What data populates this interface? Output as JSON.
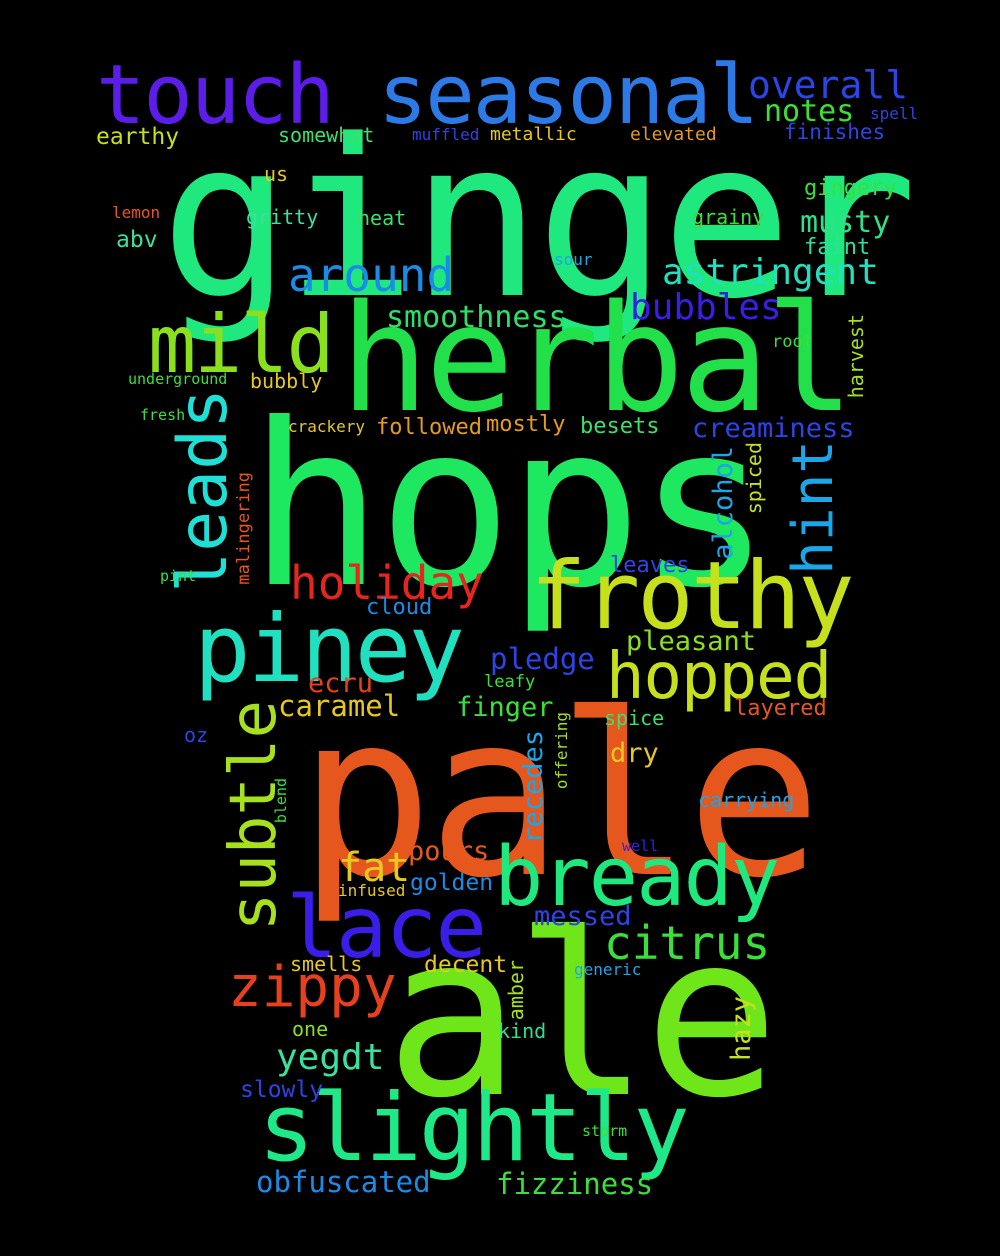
{
  "colors": {
    "background": "#000000",
    "green": "#1ee87e",
    "bright_green": "#22e060",
    "lime": "#6ee61a",
    "yellow_green": "#c6e01e",
    "teal": "#20e0c0",
    "sky": "#1aa6e8",
    "blue": "#2d7ae6",
    "indigo": "#3b1de8",
    "violet": "#5c1de8",
    "orange": "#e6571e",
    "red": "#e6261e",
    "gold": "#e6c81e",
    "amber": "#e69b1e"
  },
  "words": [
    {
      "text": "ginger",
      "color": "#1ee87e"
    },
    {
      "text": "hops",
      "color": "#1ee860"
    },
    {
      "text": "pale",
      "color": "#e6571e"
    },
    {
      "text": "ale",
      "color": "#6ee61a"
    },
    {
      "text": "herbal",
      "color": "#22e04a"
    },
    {
      "text": "touch",
      "color": "#5c1de8"
    },
    {
      "text": "seasonal",
      "color": "#2d7ae6"
    },
    {
      "text": "frothy",
      "color": "#c6e01e"
    },
    {
      "text": "piney",
      "color": "#20e0c0"
    },
    {
      "text": "bready",
      "color": "#1ee87e"
    },
    {
      "text": "slightly",
      "color": "#1ee888"
    },
    {
      "text": "lace",
      "color": "#3b1de8"
    },
    {
      "text": "mild",
      "color": "#8ae01e"
    },
    {
      "text": "hopped",
      "color": "#c6e01e"
    },
    {
      "text": "subtle",
      "color": "#a6e01e"
    },
    {
      "text": "leads",
      "color": "#20e0d6"
    },
    {
      "text": "holiday",
      "color": "#e6261e"
    },
    {
      "text": "zippy",
      "color": "#e6401e"
    },
    {
      "text": "citrus",
      "color": "#3ae03a"
    },
    {
      "text": "around",
      "color": "#1a8ce8"
    },
    {
      "text": "hint",
      "color": "#1aa6e8"
    },
    {
      "text": "overall",
      "color": "#2d44e6"
    },
    {
      "text": "astringent",
      "color": "#20e0c0"
    },
    {
      "text": "bubbles",
      "color": "#3b1de8"
    },
    {
      "text": "notes",
      "color": "#3ae03a"
    },
    {
      "text": "musty",
      "color": "#2ee08c"
    },
    {
      "text": "smoothness",
      "color": "#2ee06a"
    },
    {
      "text": "creaminess",
      "color": "#2d44e6"
    },
    {
      "text": "yegdt",
      "color": "#3ae0a0"
    },
    {
      "text": "fizziness",
      "color": "#3ae03a"
    },
    {
      "text": "obfuscated",
      "color": "#1a8ce8"
    },
    {
      "text": "fat",
      "color": "#e6c81e"
    },
    {
      "text": "caramel",
      "color": "#e6c81e"
    },
    {
      "text": "ecru",
      "color": "#e6401e"
    },
    {
      "text": "pledge",
      "color": "#2d44e6"
    },
    {
      "text": "pleasant",
      "color": "#8ae01e"
    },
    {
      "text": "alcohol",
      "color": "#1aa6e8"
    },
    {
      "text": "pours",
      "color": "#e6571e"
    },
    {
      "text": "finger",
      "color": "#3ae03a"
    },
    {
      "text": "golden",
      "color": "#1a8ce8"
    },
    {
      "text": "messed",
      "color": "#2d44e6"
    },
    {
      "text": "recedes",
      "color": "#1aa6e8"
    },
    {
      "text": "dry",
      "color": "#e6c81e"
    },
    {
      "text": "decent",
      "color": "#e6c81e"
    },
    {
      "text": "hazy",
      "color": "#c6e01e"
    },
    {
      "text": "smells",
      "color": "#e6c81e"
    },
    {
      "text": "one",
      "color": "#8ae01e"
    },
    {
      "text": "slowly",
      "color": "#2d44e6"
    },
    {
      "text": "kind",
      "color": "#2ee08c"
    },
    {
      "text": "amber",
      "color": "#a6e01e"
    },
    {
      "text": "abv",
      "color": "#3ae0a0"
    },
    {
      "text": "earthy",
      "color": "#c6e01e"
    },
    {
      "text": "somewhat",
      "color": "#3ae06a"
    },
    {
      "text": "muffled",
      "color": "#2d44e6"
    },
    {
      "text": "metallic",
      "color": "#e6c81e"
    },
    {
      "text": "elevated",
      "color": "#e69b1e"
    },
    {
      "text": "finishes",
      "color": "#2d44e6"
    },
    {
      "text": "spell",
      "color": "#2d44e6"
    },
    {
      "text": "us",
      "color": "#e6c81e"
    },
    {
      "text": "gingery",
      "color": "#3ae03a"
    },
    {
      "text": "gritty",
      "color": "#3ae0a0"
    },
    {
      "text": "heat",
      "color": "#3ae06a"
    },
    {
      "text": "grainy",
      "color": "#3ae03a"
    },
    {
      "text": "faint",
      "color": "#2ee0a0"
    },
    {
      "text": "lemon",
      "color": "#e6571e"
    },
    {
      "text": "sour",
      "color": "#1aa6e8"
    },
    {
      "text": "root",
      "color": "#3ae03a"
    },
    {
      "text": "harvest",
      "color": "#a6e01e"
    },
    {
      "text": "underground",
      "color": "#3ae03a"
    },
    {
      "text": "bubbly",
      "color": "#e6c81e"
    },
    {
      "text": "fresh",
      "color": "#3ae03a"
    },
    {
      "text": "crackery",
      "color": "#e6c81e"
    },
    {
      "text": "followed",
      "color": "#e69b1e"
    },
    {
      "text": "mostly",
      "color": "#e69b1e"
    },
    {
      "text": "besets",
      "color": "#3ae06a"
    },
    {
      "text": "spiced",
      "color": "#c6e01e"
    },
    {
      "text": "malingering",
      "color": "#e6571e"
    },
    {
      "text": "pint",
      "color": "#3ae03a"
    },
    {
      "text": "leaves",
      "color": "#2d44e6"
    },
    {
      "text": "cloud",
      "color": "#1a8ce8"
    },
    {
      "text": "leafy",
      "color": "#3ae03a"
    },
    {
      "text": "layered",
      "color": "#e6571e"
    },
    {
      "text": "spice",
      "color": "#3ae06a"
    },
    {
      "text": "oz",
      "color": "#2d44e6"
    },
    {
      "text": "offering",
      "color": "#a6e01e"
    },
    {
      "text": "blend",
      "color": "#3ae03a"
    },
    {
      "text": "carrying",
      "color": "#1aa6e8"
    },
    {
      "text": "well",
      "color": "#3b1de8"
    },
    {
      "text": "infused",
      "color": "#e6c81e"
    },
    {
      "text": "generic",
      "color": "#1aa6e8"
    },
    {
      "text": "storm",
      "color": "#3ae03a"
    }
  ]
}
